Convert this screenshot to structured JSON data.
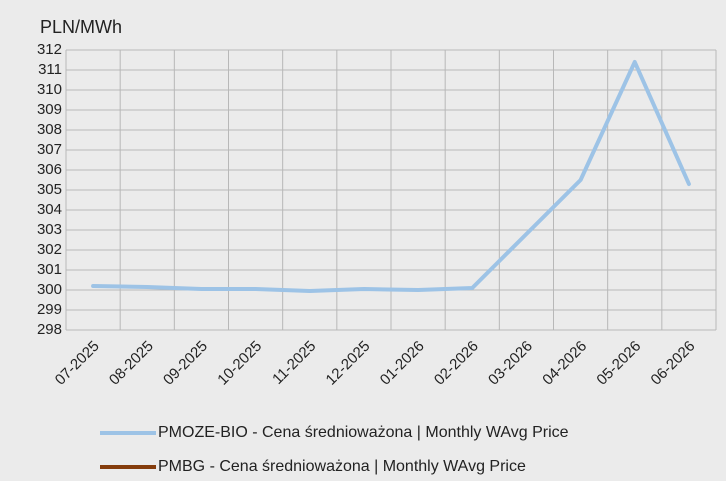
{
  "chart_data": {
    "type": "line",
    "y_axis_label": "PLN/MWh",
    "categories": [
      "07-2025",
      "08-2025",
      "09-2025",
      "10-2025",
      "11-2025",
      "12-2025",
      "01-2026",
      "02-2026",
      "03-2026",
      "04-2026",
      "05-2026",
      "06-2026"
    ],
    "series": [
      {
        "name": "PMOZE-BIO  -  Cena średnioważona | Monthly WAvg Price",
        "color": "#9dc3e6",
        "values": [
          300.2,
          300.15,
          300.05,
          300.05,
          299.95,
          300.05,
          300.0,
          300.1,
          302.8,
          305.5,
          311.4,
          305.3
        ]
      },
      {
        "name": "PMBG  -  Cena średnioważona | Monthly WAvg Price",
        "color": "#843c0c",
        "values": [
          null,
          null,
          null,
          null,
          null,
          null,
          null,
          null,
          null,
          null,
          null,
          null
        ]
      }
    ],
    "ylim": [
      298,
      312
    ],
    "yticks": [
      298,
      299,
      300,
      301,
      302,
      303,
      304,
      305,
      306,
      307,
      308,
      309,
      310,
      311,
      312
    ],
    "grid": true
  }
}
